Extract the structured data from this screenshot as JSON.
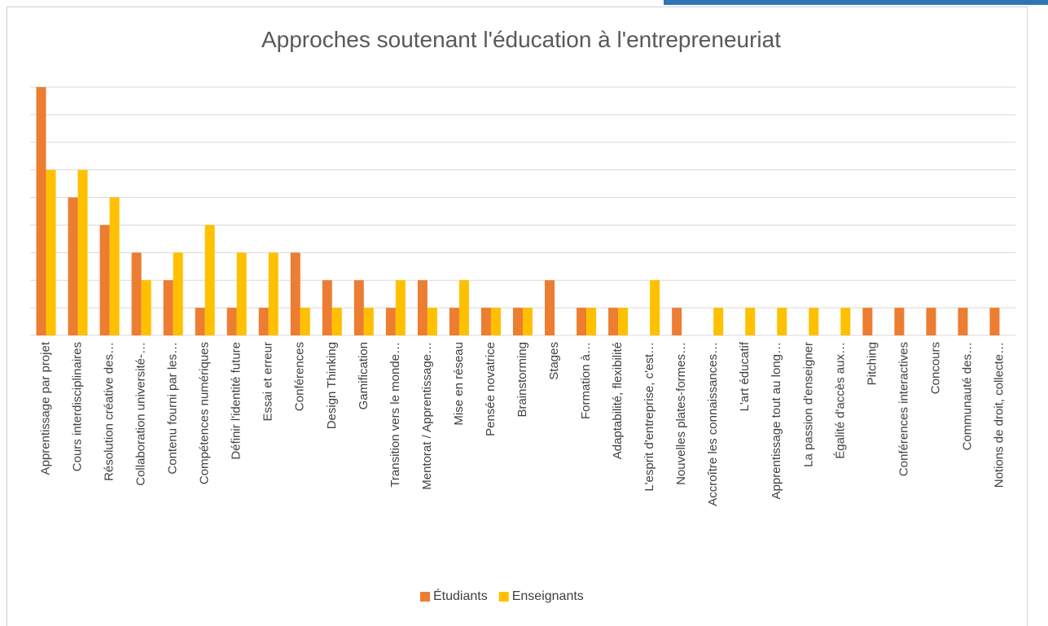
{
  "chart_data": {
    "type": "bar",
    "title": "Approches soutenant l'éducation à l'entrepreneuriat",
    "categories": [
      "Apprentissage par projet",
      "Cours interdisciplinaires",
      "Résolution créative des…",
      "Collaboration université-…",
      "Contenu fourni par les…",
      "Compétences numériques",
      "Définir l'identité future",
      "Essai et erreur",
      "Conférences",
      "Design Thinking",
      "Gamification",
      "Transition vers le monde…",
      "Mentorat / Apprentissage…",
      "Mise en réseau",
      "Pensée novatrice",
      "Brainstorming",
      "Stages",
      "Formation à…",
      "Adaptabilité,  flexibilité",
      "L'esprit d'entreprise, c'est…",
      "Nouvelles plates-formes…",
      "Accroître les connaissances…",
      "L'art éducatif",
      "Apprentissage tout au long…",
      "La passion d'enseigner",
      "Égalité d'accès aux…",
      "Pitching",
      "Conférences interactives",
      "Concours",
      "Communauté des…",
      "Notions de droit, collecte…"
    ],
    "series": [
      {
        "name": "Étudiants",
        "color": "#ED7D31",
        "values": [
          9,
          5,
          4,
          3,
          2,
          1,
          1,
          1,
          3,
          2,
          2,
          1,
          2,
          1,
          1,
          1,
          2,
          1,
          1,
          0,
          1,
          0,
          0,
          0,
          0,
          0,
          1,
          1,
          1,
          1,
          1
        ]
      },
      {
        "name": "Enseignants",
        "color": "#FFC000",
        "values": [
          6,
          6,
          5,
          2,
          3,
          4,
          3,
          3,
          1,
          1,
          1,
          2,
          1,
          2,
          1,
          1,
          0,
          1,
          1,
          2,
          0,
          1,
          1,
          1,
          1,
          1,
          0,
          0,
          0,
          0,
          0
        ]
      }
    ],
    "ylim": [
      0,
      9
    ],
    "yticks": [
      0,
      1,
      2,
      3,
      4,
      5,
      6,
      7,
      8,
      9
    ],
    "grid": true,
    "legend": "bottom"
  }
}
